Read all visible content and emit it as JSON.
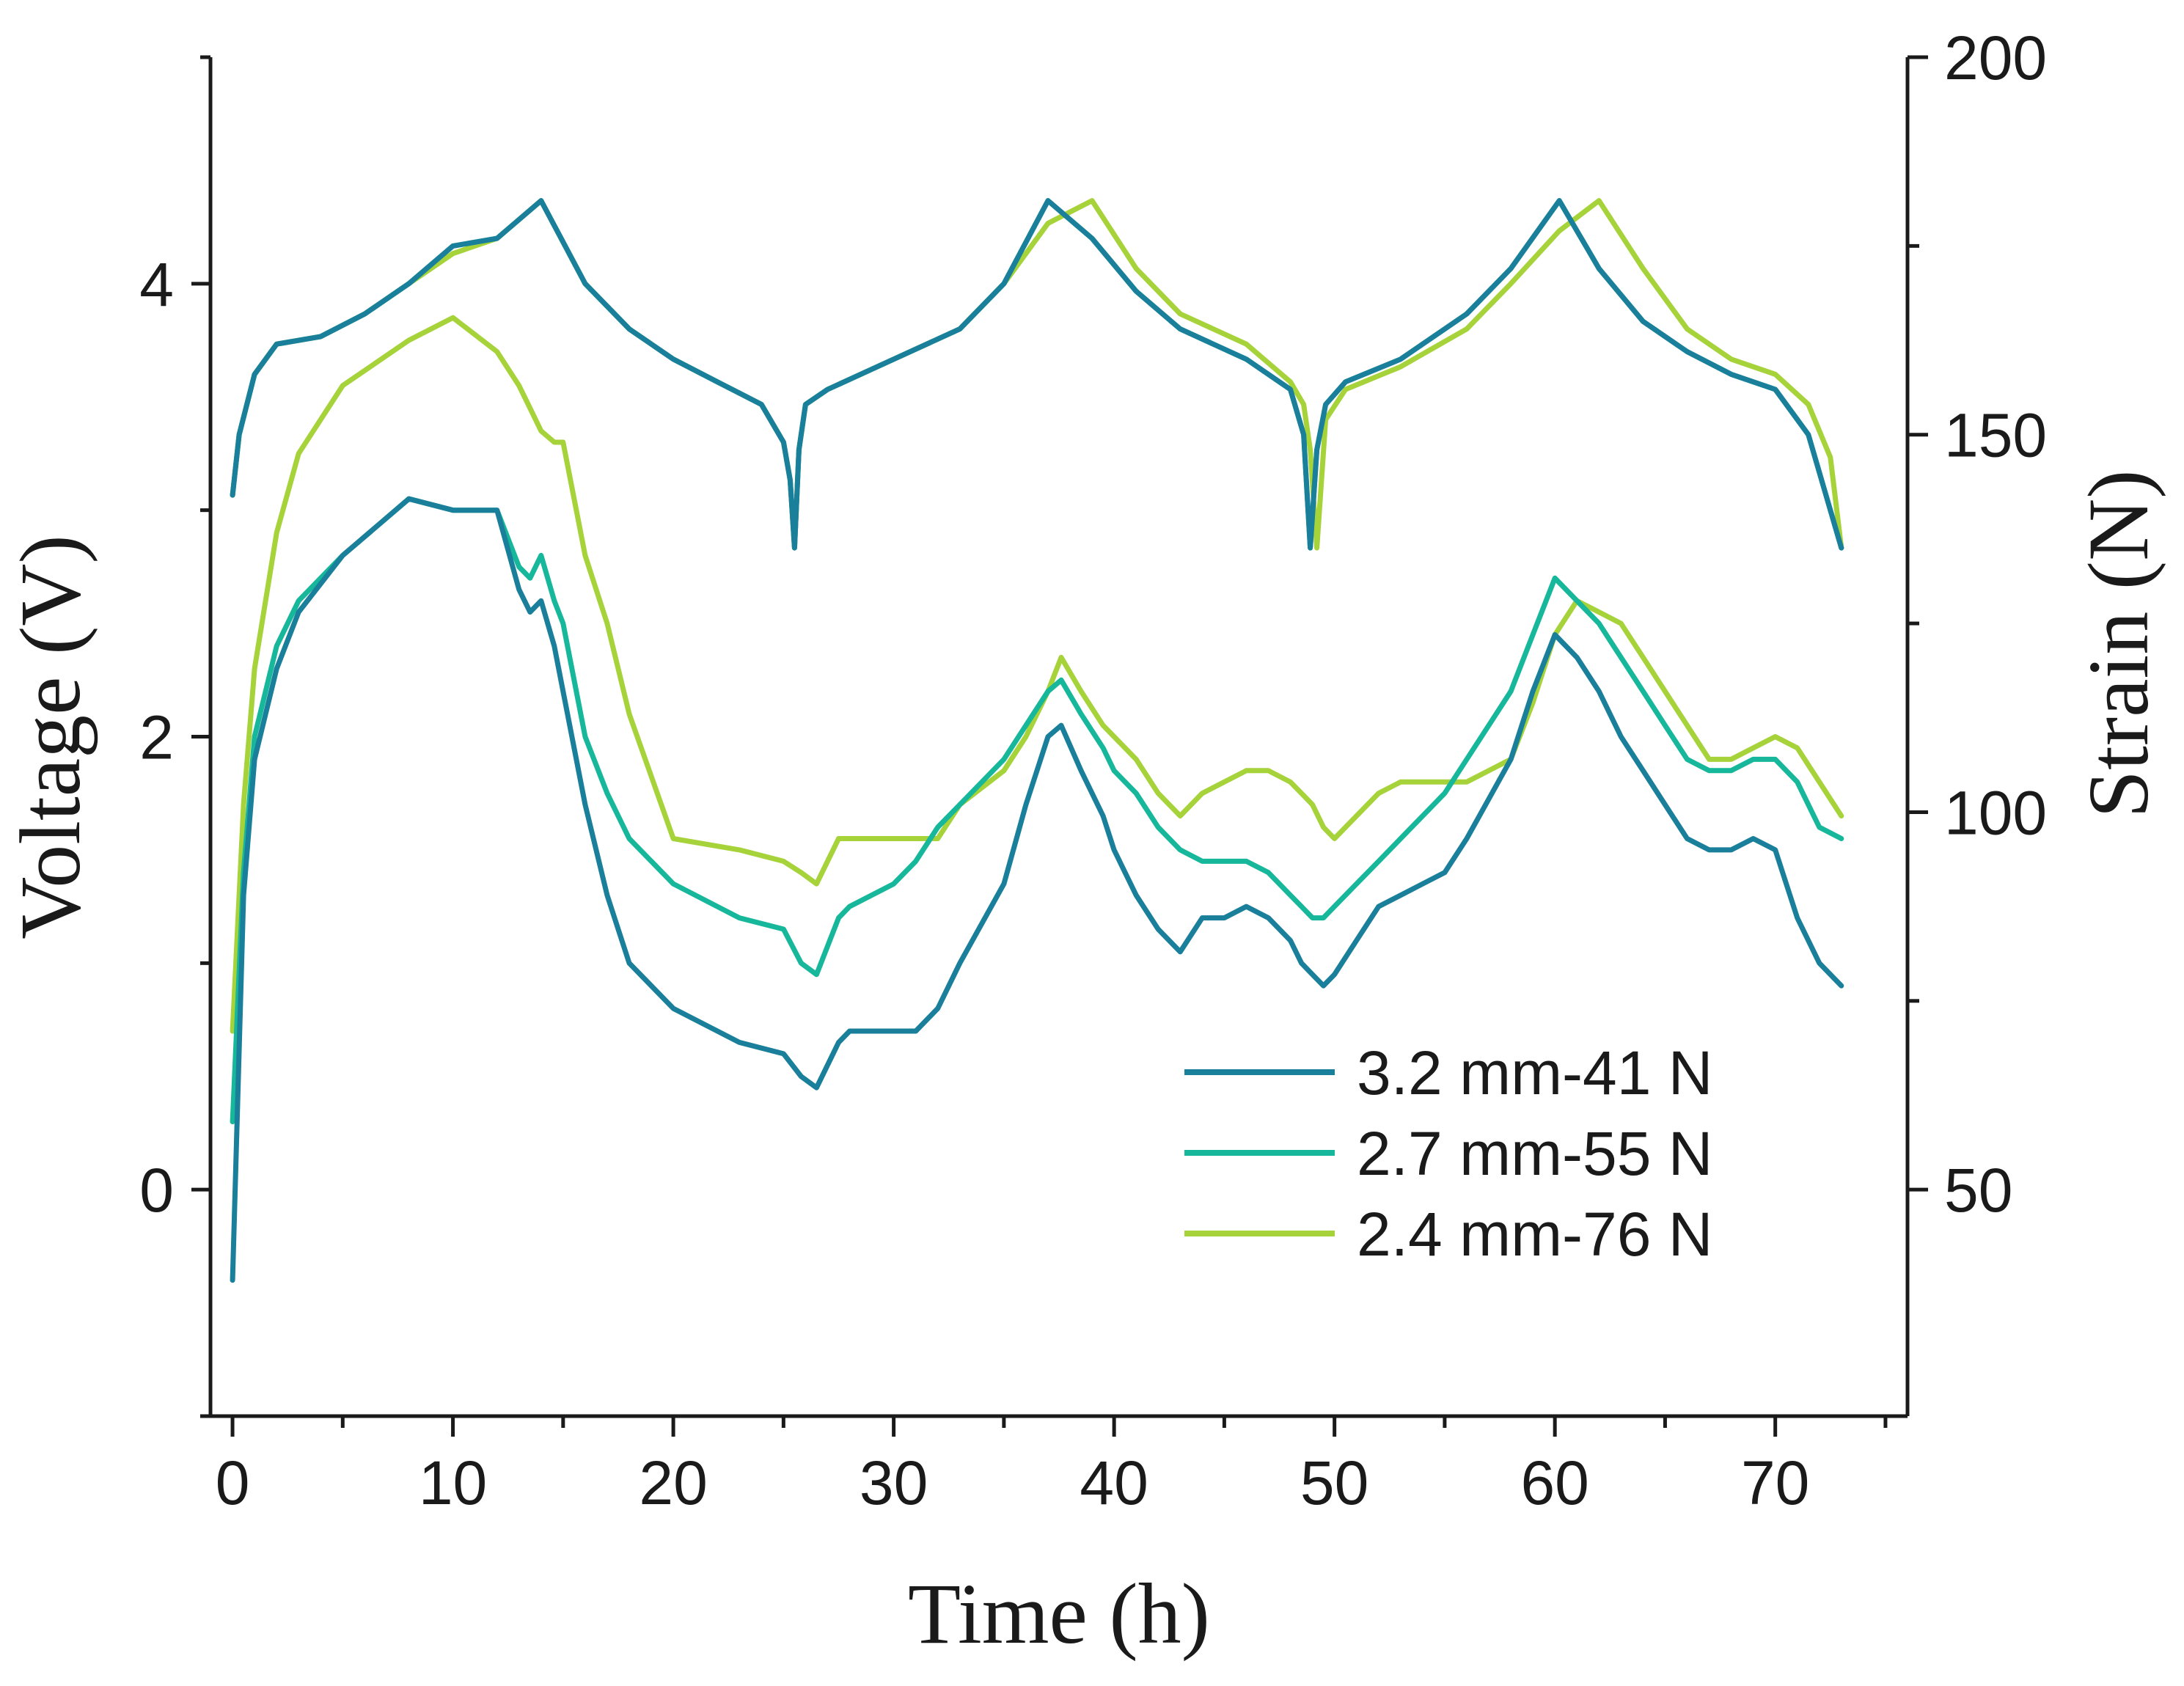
{
  "chart_data": {
    "type": "line",
    "title": "",
    "xlabel": "Time (h)",
    "ylabel": "Voltage (V)",
    "y2label": "Strain (N)",
    "xlim": [
      -1,
      76
    ],
    "ylim": [
      -1,
      5
    ],
    "y2lim": [
      20,
      200
    ],
    "xticks": [
      0,
      10,
      20,
      30,
      40,
      50,
      60,
      70
    ],
    "yticks": [
      0,
      2,
      4
    ],
    "y2ticks": [
      50,
      100,
      150,
      200
    ],
    "legend_position": "bottom-right",
    "series_colors": [
      "#1a7f9a",
      "#16b79a",
      "#a6d23a"
    ],
    "voltage": {
      "axis": "left",
      "x": [
        0,
        0.5,
        1,
        2,
        3,
        5,
        8,
        10,
        12,
        13,
        13.5,
        14,
        14.6,
        15,
        16,
        17,
        18,
        20,
        23,
        25,
        25.8,
        26.5,
        27.5,
        28,
        30,
        31,
        32,
        33,
        35,
        36,
        37,
        37.6,
        38.5,
        39.5,
        40,
        41,
        42,
        43,
        44,
        45,
        46,
        47,
        48,
        48.5,
        49,
        49.5,
        50,
        51,
        52,
        53,
        54,
        55,
        56,
        58,
        59,
        60,
        61,
        62,
        63,
        64,
        65,
        66,
        67,
        68,
        69,
        70,
        71,
        72,
        73
      ],
      "series_x_span": [
        0,
        73
      ],
      "series": [
        {
          "name": "2.4 mm-76 N",
          "values": [
            0.7,
            1.7,
            2.3,
            2.9,
            3.25,
            3.55,
            3.75,
            3.85,
            3.7,
            3.55,
            3.45,
            3.35,
            3.3,
            3.3,
            2.8,
            2.5,
            2.1,
            1.55,
            1.5,
            1.45,
            1.4,
            1.35,
            1.55,
            1.55,
            1.55,
            1.55,
            1.55,
            1.7,
            1.85,
            2.0,
            2.2,
            2.35,
            2.2,
            2.05,
            2.0,
            1.9,
            1.75,
            1.65,
            1.75,
            1.8,
            1.85,
            1.85,
            1.8,
            1.75,
            1.7,
            1.6,
            1.55,
            1.65,
            1.75,
            1.8,
            1.8,
            1.8,
            1.8,
            1.9,
            2.15,
            2.45,
            2.6,
            2.55,
            2.5,
            2.35,
            2.2,
            2.05,
            1.9,
            1.9,
            1.95,
            2.0,
            1.95,
            1.8,
            1.65
          ]
        },
        {
          "name": "2.7 mm-55 N",
          "values": [
            0.3,
            1.4,
            2.0,
            2.4,
            2.6,
            2.8,
            3.05,
            3.0,
            3.0,
            2.75,
            2.7,
            2.8,
            2.6,
            2.5,
            2.0,
            1.75,
            1.55,
            1.35,
            1.2,
            1.15,
            1.0,
            0.95,
            1.2,
            1.25,
            1.35,
            1.45,
            1.6,
            1.7,
            1.9,
            2.05,
            2.2,
            2.25,
            2.1,
            1.95,
            1.85,
            1.75,
            1.6,
            1.5,
            1.45,
            1.45,
            1.45,
            1.4,
            1.3,
            1.25,
            1.2,
            1.2,
            1.25,
            1.35,
            1.45,
            1.55,
            1.65,
            1.75,
            1.9,
            2.2,
            2.45,
            2.7,
            2.6,
            2.5,
            2.35,
            2.2,
            2.05,
            1.9,
            1.85,
            1.85,
            1.9,
            1.9,
            1.8,
            1.6,
            1.55
          ]
        },
        {
          "name": "3.2 mm-41 N",
          "values": [
            -0.4,
            1.3,
            1.9,
            2.3,
            2.55,
            2.8,
            3.05,
            3.0,
            3.0,
            2.65,
            2.55,
            2.6,
            2.4,
            2.2,
            1.7,
            1.3,
            1.0,
            0.8,
            0.65,
            0.6,
            0.5,
            0.45,
            0.65,
            0.7,
            0.7,
            0.7,
            0.8,
            1.0,
            1.35,
            1.7,
            2.0,
            2.05,
            1.85,
            1.65,
            1.5,
            1.3,
            1.15,
            1.05,
            1.2,
            1.2,
            1.25,
            1.2,
            1.1,
            1.0,
            0.95,
            0.9,
            0.95,
            1.1,
            1.25,
            1.3,
            1.35,
            1.4,
            1.55,
            1.9,
            2.2,
            2.45,
            2.35,
            2.2,
            2.0,
            1.85,
            1.7,
            1.55,
            1.5,
            1.5,
            1.55,
            1.5,
            1.2,
            1.0,
            0.9
          ]
        }
      ]
    },
    "strain": {
      "axis": "right",
      "x": [
        0,
        0.3,
        1,
        2,
        4,
        6,
        8,
        10,
        12,
        14,
        16,
        18,
        20,
        22,
        24,
        25,
        25.3,
        25.5,
        25.7,
        26,
        27,
        30,
        33,
        35,
        37,
        39,
        41,
        43,
        46,
        48,
        48.6,
        48.9,
        49.2,
        49.6,
        50.5,
        53,
        56,
        58,
        60.2,
        62,
        64,
        66,
        68,
        70,
        71.5,
        72.5,
        73
      ],
      "series": [
        {
          "name": "2.4 mm-76 N",
          "values": [
            142,
            150,
            158,
            162,
            163,
            166,
            170,
            174,
            176,
            181,
            170,
            164,
            160,
            157,
            154,
            149,
            144,
            135,
            148,
            154,
            156,
            160,
            164,
            170,
            178,
            181,
            172,
            166,
            162,
            157,
            154,
            148,
            135,
            152,
            156,
            159,
            164,
            170,
            177,
            181,
            172,
            164,
            160,
            158,
            154,
            147,
            135
          ]
        },
        {
          "name": "2.7 mm-55 N",
          "values": [
            142,
            150,
            158,
            162,
            163,
            166,
            170,
            175,
            176,
            181,
            170,
            164,
            160,
            157,
            154,
            149,
            144,
            135,
            148,
            154,
            156,
            160,
            164,
            170,
            181,
            176,
            169,
            164,
            160,
            156,
            150,
            135,
            148,
            154,
            157,
            160,
            166,
            172,
            181,
            172,
            165,
            161,
            158,
            156,
            150,
            140,
            135
          ]
        },
        {
          "name": "3.2 mm-41 N",
          "values": [
            142,
            150,
            158,
            162,
            163,
            166,
            170,
            175,
            176,
            181,
            170,
            164,
            160,
            157,
            154,
            149,
            144,
            135,
            148,
            154,
            156,
            160,
            164,
            170,
            181,
            176,
            169,
            164,
            160,
            156,
            150,
            135,
            148,
            154,
            157,
            160,
            166,
            172,
            181,
            172,
            165,
            161,
            158,
            156,
            150,
            140,
            135
          ]
        }
      ]
    },
    "legend": [
      "3.2 mm-41 N",
      "2.7 mm-55 N",
      "2.4 mm-76 N"
    ]
  }
}
